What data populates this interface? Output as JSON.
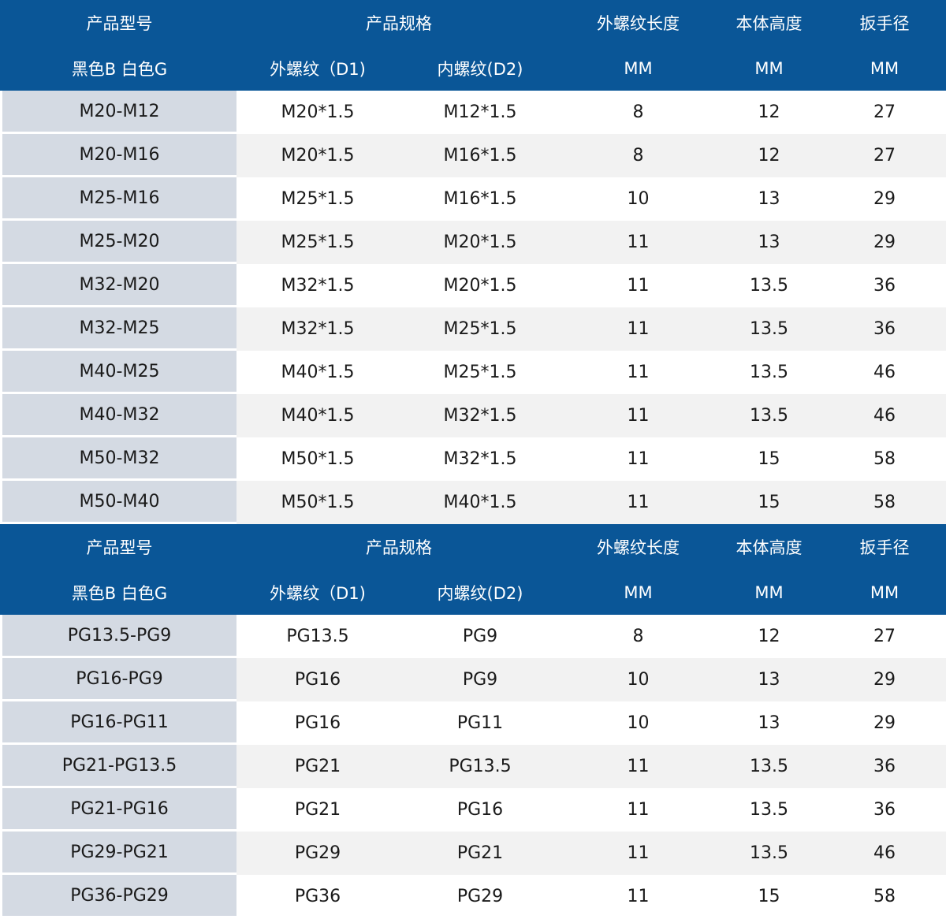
{
  "header": {
    "model": "产品型号",
    "spec": "产品规格",
    "thread_length": "外螺纹长度",
    "body_height": "本体高度",
    "wrench": "扳手径",
    "color_note": "黑色B 白色G",
    "outer_thread": "外螺纹（D1)",
    "inner_thread": "内螺纹(D2)",
    "unit_mm": "MM"
  },
  "tables": [
    {
      "rows": [
        [
          "M20-M12",
          "M20*1.5",
          "M12*1.5",
          "8",
          "12",
          "27"
        ],
        [
          "M20-M16",
          "M20*1.5",
          "M16*1.5",
          "8",
          "12",
          "27"
        ],
        [
          "M25-M16",
          "M25*1.5",
          "M16*1.5",
          "10",
          "13",
          "29"
        ],
        [
          "M25-M20",
          "M25*1.5",
          "M20*1.5",
          "11",
          "13",
          "29"
        ],
        [
          "M32-M20",
          "M32*1.5",
          "M20*1.5",
          "11",
          "13.5",
          "36"
        ],
        [
          "M32-M25",
          "M32*1.5",
          "M25*1.5",
          "11",
          "13.5",
          "36"
        ],
        [
          "M40-M25",
          "M40*1.5",
          "M25*1.5",
          "11",
          "13.5",
          "46"
        ],
        [
          "M40-M32",
          "M40*1.5",
          "M32*1.5",
          "11",
          "13.5",
          "46"
        ],
        [
          "M50-M32",
          "M50*1.5",
          "M32*1.5",
          "11",
          "15",
          "58"
        ],
        [
          "M50-M40",
          "M50*1.5",
          "M40*1.5",
          "11",
          "15",
          "58"
        ]
      ]
    },
    {
      "rows": [
        [
          "PG13.5-PG9",
          "PG13.5",
          "PG9",
          "8",
          "12",
          "27"
        ],
        [
          "PG16-PG9",
          "PG16",
          "PG9",
          "10",
          "13",
          "29"
        ],
        [
          "PG16-PG11",
          "PG16",
          "PG11",
          "10",
          "13",
          "29"
        ],
        [
          "PG21-PG13.5",
          "PG21",
          "PG13.5",
          "11",
          "13.5",
          "36"
        ],
        [
          "PG21-PG16",
          "PG21",
          "PG16",
          "11",
          "13.5",
          "36"
        ],
        [
          "PG29-PG21",
          "PG29",
          "PG21",
          "11",
          "13.5",
          "46"
        ],
        [
          "PG36-PG29",
          "PG36",
          "PG29",
          "11",
          "15",
          "58"
        ]
      ]
    }
  ],
  "colors": {
    "header_bg": "#0a5697",
    "header_text": "#ffffff",
    "model_col_bg": "#d4dae3",
    "row_alt_bg": "#f2f2f2",
    "row_bg": "#ffffff",
    "body_text": "#1a1a1a"
  }
}
